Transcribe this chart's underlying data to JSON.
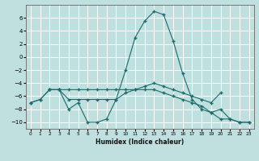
{
  "xlabel": "Humidex (Indice chaleur)",
  "bg_color": "#c0e0e0",
  "grid_color": "#ffffff",
  "line_color": "#1a6b6b",
  "xlim": [
    -0.5,
    23.5
  ],
  "ylim": [
    -11,
    8
  ],
  "yticks": [
    -10,
    -8,
    -6,
    -4,
    -2,
    0,
    2,
    4,
    6
  ],
  "xticks": [
    0,
    1,
    2,
    3,
    4,
    5,
    6,
    7,
    8,
    9,
    10,
    11,
    12,
    13,
    14,
    15,
    16,
    17,
    18,
    19,
    20,
    21,
    22,
    23
  ],
  "line1_x": [
    0,
    1,
    2,
    3,
    4,
    5,
    6,
    7,
    8,
    9,
    10,
    11,
    12,
    13,
    14,
    15,
    16,
    17,
    18,
    19,
    20,
    21,
    22,
    23
  ],
  "line1_y": [
    -7.0,
    -6.5,
    -5.0,
    -5.0,
    -5.0,
    -5.0,
    -5.0,
    -5.0,
    -5.0,
    -5.0,
    -5.0,
    -5.0,
    -5.0,
    -5.0,
    -5.5,
    -6.0,
    -6.5,
    -7.0,
    -7.5,
    -8.5,
    -9.5,
    -9.5,
    -10.0,
    -10.0
  ],
  "line2_x": [
    0,
    1,
    2,
    3,
    4,
    5,
    6,
    7,
    8,
    9,
    10,
    11,
    12,
    13,
    14,
    15,
    16,
    17,
    18,
    19,
    20,
    21,
    22,
    23
  ],
  "line2_y": [
    -7.0,
    -6.5,
    -5.0,
    -5.0,
    -8.0,
    -7.0,
    -10.0,
    -10.0,
    -9.5,
    -6.5,
    -2.0,
    3.0,
    5.5,
    7.0,
    6.5,
    2.5,
    -2.5,
    -6.5,
    -8.0,
    -8.5,
    -8.0,
    -9.5,
    -10.0,
    -10.0
  ],
  "line3_x": [
    2,
    3,
    4,
    5,
    6,
    7,
    8,
    9,
    10,
    11,
    12,
    13,
    14,
    15,
    16,
    17,
    18,
    19,
    20
  ],
  "line3_y": [
    -5.0,
    -5.0,
    -6.5,
    -6.5,
    -6.5,
    -6.5,
    -6.5,
    -6.5,
    -5.5,
    -5.0,
    -4.5,
    -4.0,
    -4.5,
    -5.0,
    -5.5,
    -6.0,
    -6.5,
    -7.0,
    -5.5
  ]
}
